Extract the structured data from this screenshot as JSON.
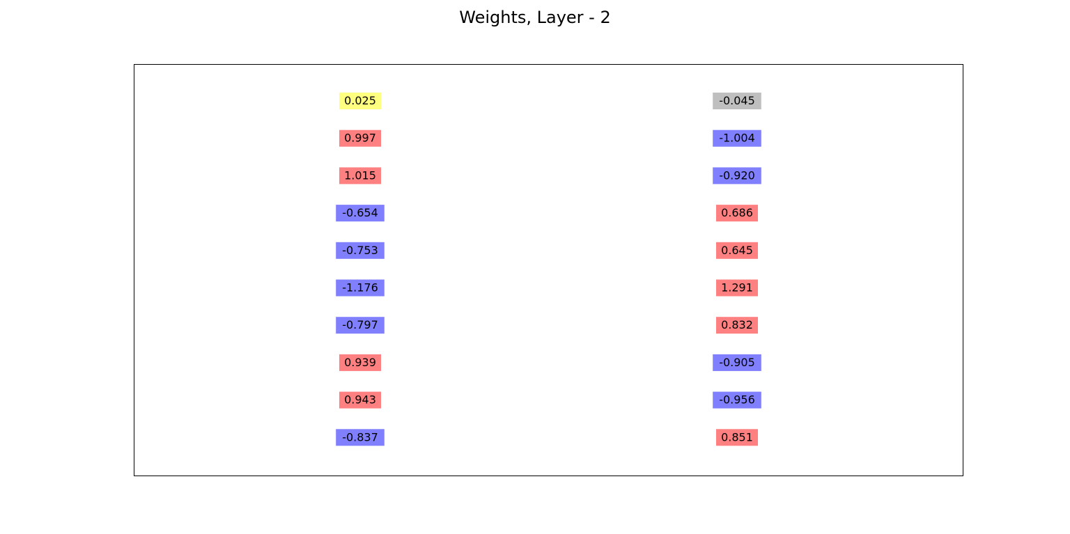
{
  "chart_data": {
    "type": "table",
    "title": "Weights, Layer - 2",
    "columns": [
      {
        "values": [
          "0.025",
          "0.997",
          "1.015",
          "-0.654",
          "-0.753",
          "-1.176",
          "-0.797",
          "0.939",
          "0.943",
          "-0.837"
        ],
        "colors": [
          "#ffff80",
          "#ff8080",
          "#ff8080",
          "#8080ff",
          "#8080ff",
          "#8080ff",
          "#8080ff",
          "#ff8080",
          "#ff8080",
          "#8080ff"
        ]
      },
      {
        "values": [
          "-0.045",
          "-1.004",
          "-0.920",
          "0.686",
          "0.645",
          "1.291",
          "0.832",
          "-0.905",
          "-0.956",
          "0.851"
        ],
        "colors": [
          "#bfbfbf",
          "#8080ff",
          "#8080ff",
          "#ff8080",
          "#ff8080",
          "#ff8080",
          "#ff8080",
          "#8080ff",
          "#8080ff",
          "#ff8080"
        ]
      }
    ],
    "color_key": {
      "positive": "#ff8080",
      "negative": "#8080ff",
      "first_row_column_1": "#ffff80",
      "first_row_column_2": "#bfbfbf"
    },
    "grid": false,
    "axes_visible": false
  }
}
